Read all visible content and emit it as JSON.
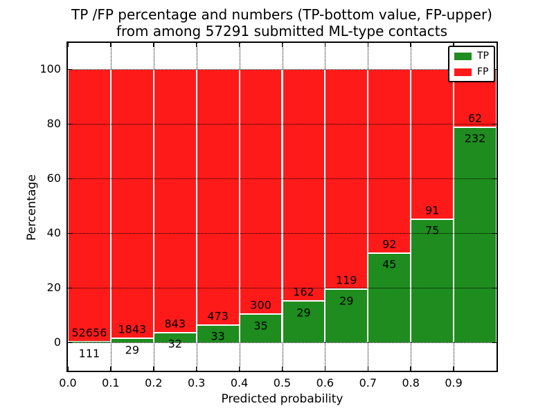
{
  "figure": {
    "background": "#ffffff",
    "plot_background": "#ffffff",
    "frame_color": "#000000"
  },
  "title": {
    "line1": "TP /FP percentage and numbers (TP-bottom value, FP-upper)",
    "line2": "from among 57291 submitted ML-type contacts"
  },
  "axes": {
    "xlabel": "Predicted probability",
    "ylabel": "Percentage",
    "xtick_labels": [
      "0.0",
      "0.1",
      "0.2",
      "0.3",
      "0.4",
      "0.5",
      "0.6",
      "0.7",
      "0.8",
      "0.9"
    ],
    "yticks": [
      0,
      20,
      40,
      60,
      80,
      100
    ],
    "ytick_labels": [
      "0",
      "20",
      "40",
      "60",
      "80",
      "100"
    ],
    "grid_style": "dotted",
    "grid_color": "#000000"
  },
  "legend": {
    "position": "upper right",
    "items": [
      {
        "label": "TP",
        "color": "#1E8C1E"
      },
      {
        "label": "FP",
        "color": "#FF1A1A"
      }
    ]
  },
  "chart_data": {
    "type": "bar",
    "stacked": true,
    "normalized": "each bin scaled to 100%",
    "title": "TP /FP percentage and numbers (TP-bottom value, FP-upper) from among 57291 submitted ML-type contacts",
    "xlabel": "Predicted probability",
    "ylabel": "Percentage",
    "total_submitted": 57291,
    "categories": [
      "0.0-0.1",
      "0.1-0.2",
      "0.2-0.3",
      "0.3-0.4",
      "0.4-0.5",
      "0.5-0.6",
      "0.6-0.7",
      "0.7-0.8",
      "0.8-0.9",
      "0.9-1.0"
    ],
    "series": [
      {
        "name": "TP",
        "color": "#1E8C1E",
        "counts": [
          111,
          29,
          32,
          33,
          35,
          29,
          29,
          45,
          75,
          232
        ]
      },
      {
        "name": "FP",
        "color": "#FF1A1A",
        "counts": [
          52656,
          1843,
          843,
          473,
          300,
          162,
          119,
          92,
          91,
          62
        ]
      }
    ],
    "bar_label_rule": "FP count printed just above TP segment top, TP count printed just below TP segment top",
    "layout": {
      "xlim": [
        0.0,
        1.0
      ],
      "ylim": [
        -10.3,
        109.7
      ],
      "bar_width": 0.1,
      "grid": true,
      "legend_position": "upper right"
    }
  }
}
